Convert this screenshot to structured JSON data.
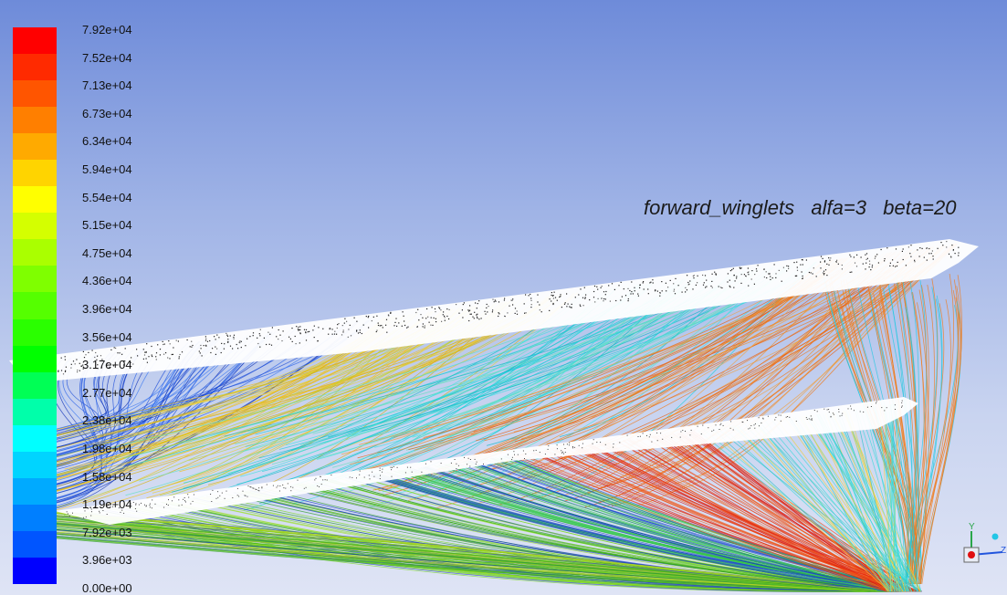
{
  "plot": {
    "title": "forward_winglets   alfa=3   beta=20"
  },
  "colormap": {
    "labels": [
      "7.92e+04",
      "7.52e+04",
      "7.13e+04",
      "6.73e+04",
      "6.34e+04",
      "5.94e+04",
      "5.54e+04",
      "5.15e+04",
      "4.75e+04",
      "4.36e+04",
      "3.96e+04",
      "3.56e+04",
      "3.17e+04",
      "2.77e+04",
      "2.38e+04",
      "1.98e+04",
      "1.58e+04",
      "1.19e+04",
      "7.92e+03",
      "3.96e+03",
      "0.00e+00"
    ],
    "colors": [
      "#ff0000",
      "#ff2a00",
      "#ff5500",
      "#ff7f00",
      "#ffaa00",
      "#ffd400",
      "#ffff00",
      "#d4ff00",
      "#aaff00",
      "#7fff00",
      "#55ff00",
      "#2aff00",
      "#00ff00",
      "#00ff55",
      "#00ffaa",
      "#00ffff",
      "#00d4ff",
      "#00aaff",
      "#007fff",
      "#0055ff",
      "#0000ff"
    ]
  },
  "axes_triad": {
    "y_label": "Y",
    "z_label": "Z"
  }
}
